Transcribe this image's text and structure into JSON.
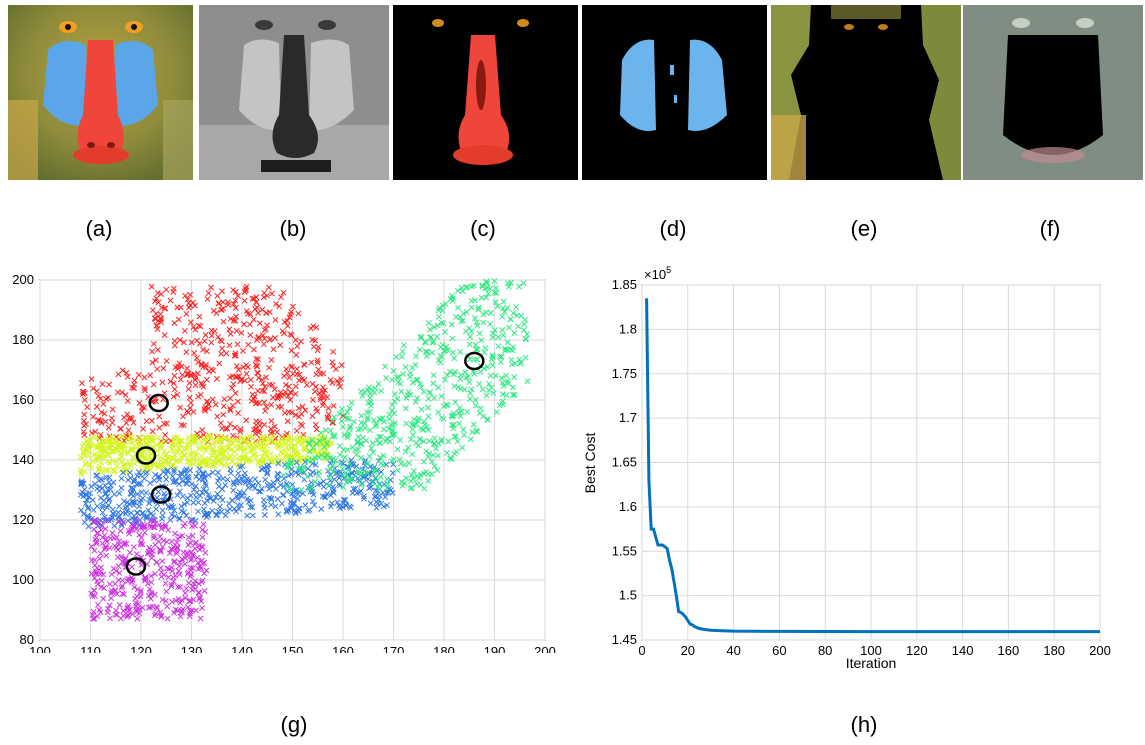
{
  "panel_labels": {
    "a": "(a)",
    "b": "(b)",
    "c": "(c)",
    "d": "(d)",
    "e": "(e)",
    "f": "(f)",
    "g": "(g)",
    "h": "(h)"
  },
  "colors": {
    "red_cluster": "#ff2020",
    "yellow_cluster": "#d4f522",
    "blue_cluster": "#2f78e6",
    "magenta_cluster": "#cc33e0",
    "green_cluster": "#2ee880",
    "line": "#0072bd",
    "nose_red": "#f0453a",
    "cheek_blue": "#5aa6e8"
  },
  "chart_data": [
    {
      "type": "scatter",
      "title": "",
      "xlabel": "",
      "ylabel": "",
      "xlim": [
        100,
        200
      ],
      "ylim": [
        80,
        200
      ],
      "xticks": [
        "100",
        "110",
        "120",
        "130",
        "140",
        "150",
        "160",
        "170",
        "180",
        "190",
        "200"
      ],
      "yticks": [
        "80",
        "100",
        "120",
        "140",
        "160",
        "180",
        "200"
      ],
      "grid": true,
      "marker": "x",
      "clusters": [
        {
          "color": "#ff2020",
          "region_x": [
            108,
            160
          ],
          "region_y": [
            146,
            198
          ]
        },
        {
          "color": "#d4f522",
          "region_x": [
            108,
            158
          ],
          "region_y": [
            135,
            148
          ]
        },
        {
          "color": "#2f78e6",
          "region_x": [
            108,
            170
          ],
          "region_y": [
            117,
            140
          ]
        },
        {
          "color": "#cc33e0",
          "region_x": [
            110,
            133
          ],
          "region_y": [
            87,
            120
          ]
        },
        {
          "color": "#2ee880",
          "region_x": [
            148,
            197
          ],
          "region_y": [
            130,
            200
          ]
        }
      ],
      "centroids": [
        {
          "x": 123.5,
          "y": 159
        },
        {
          "x": 121,
          "y": 141.5
        },
        {
          "x": 124,
          "y": 128.5
        },
        {
          "x": 119,
          "y": 104.5
        },
        {
          "x": 186,
          "y": 173
        }
      ]
    },
    {
      "type": "line",
      "title": "",
      "xlabel": "Iteration",
      "ylabel": "Best Cost",
      "exponent_label": "×10",
      "exponent_power": "5",
      "xlim": [
        0,
        200
      ],
      "ylim": [
        1.45,
        1.85
      ],
      "xticks": [
        "0",
        "20",
        "40",
        "60",
        "80",
        "100",
        "120",
        "140",
        "160",
        "180",
        "200"
      ],
      "yticks": [
        "1.45",
        "1.5",
        "1.55",
        "1.6",
        "1.65",
        "1.7",
        "1.75",
        "1.8",
        "1.85"
      ],
      "grid": true,
      "x": [
        2,
        3,
        4,
        5,
        7,
        9,
        11,
        12,
        13,
        14,
        15,
        16,
        17,
        18,
        19,
        20,
        21,
        22,
        23,
        25,
        27,
        30,
        35,
        40,
        50,
        60,
        80,
        100,
        120,
        140,
        160,
        180,
        200
      ],
      "values": [
        1.835,
        1.63,
        1.575,
        1.575,
        1.557,
        1.557,
        1.553,
        1.54,
        1.53,
        1.515,
        1.5,
        1.482,
        1.481,
        1.479,
        1.476,
        1.472,
        1.468,
        1.467,
        1.465,
        1.463,
        1.462,
        1.461,
        1.4605,
        1.46,
        1.4598,
        1.4597,
        1.4596,
        1.4595,
        1.4595,
        1.4595,
        1.4595,
        1.4595,
        1.4595
      ]
    }
  ]
}
